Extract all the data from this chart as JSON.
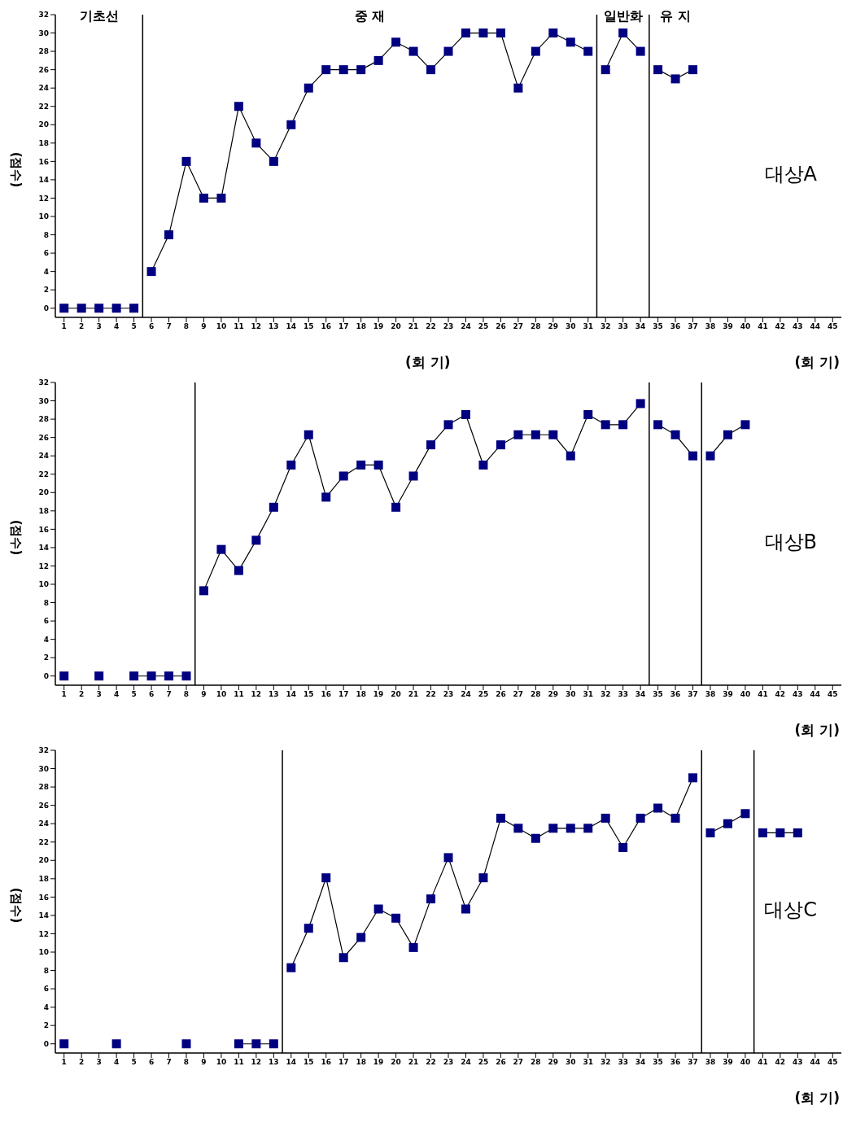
{
  "chart_data": [
    {
      "type": "line",
      "xlabel": "(회 기)",
      "ylabel": "(점수)",
      "xlim": [
        0.5,
        45.5
      ],
      "xticks": [
        1,
        2,
        3,
        4,
        5,
        6,
        7,
        8,
        9,
        10,
        11,
        12,
        13,
        14,
        15,
        16,
        17,
        18,
        19,
        20,
        21,
        22,
        23,
        24,
        25,
        26,
        27,
        28,
        29,
        30,
        31,
        32,
        33,
        34,
        35,
        36,
        37,
        38,
        39,
        40,
        41,
        42,
        43,
        44,
        45
      ],
      "ylim": [
        -1,
        32
      ],
      "yticks": [
        0,
        2,
        4,
        6,
        8,
        10,
        12,
        14,
        16,
        18,
        20,
        22,
        24,
        26,
        28,
        30,
        32
      ],
      "grid": false,
      "legend": false,
      "marker": "square",
      "line_style": "solid",
      "ref_lines": [
        {
          "axis": "x",
          "value": 5.5
        },
        {
          "axis": "x",
          "value": 31.5
        },
        {
          "axis": "x",
          "value": 34.5
        }
      ],
      "annotations": [
        "대상A",
        "(회 기)",
        "기초선",
        "중 재",
        "일반화",
        "유 지"
      ],
      "series": [
        {
          "color": "#000080",
          "x": [
            1,
            2,
            3,
            4,
            5
          ],
          "values": [
            0,
            0,
            0,
            0,
            0
          ]
        },
        {
          "color": "#000080",
          "x": [
            6,
            7,
            8,
            9,
            10,
            11,
            12,
            13,
            14,
            15,
            16,
            17,
            18,
            19,
            20,
            21,
            22,
            23,
            24,
            25,
            26,
            27,
            28,
            29,
            30,
            31
          ],
          "values": [
            4,
            8,
            16,
            12,
            12,
            22,
            18,
            16,
            20,
            24,
            26,
            26,
            26,
            27,
            29,
            28,
            26,
            28,
            30,
            30,
            30,
            24,
            28,
            30,
            29,
            28
          ]
        },
        {
          "color": "#000080",
          "x": [
            32,
            33,
            34
          ],
          "values": [
            26,
            30,
            28
          ]
        },
        {
          "color": "#000080",
          "x": [
            35,
            36,
            37
          ],
          "values": [
            26,
            25,
            26
          ]
        }
      ]
    },
    {
      "type": "line",
      "xlabel": "(회 기)",
      "ylabel": "(점수)",
      "xlim": [
        0.5,
        45.5
      ],
      "xticks": [
        1,
        2,
        3,
        4,
        5,
        6,
        7,
        8,
        9,
        10,
        11,
        12,
        13,
        14,
        15,
        16,
        17,
        18,
        19,
        20,
        21,
        22,
        23,
        24,
        25,
        26,
        27,
        28,
        29,
        30,
        31,
        32,
        33,
        34,
        35,
        36,
        37,
        38,
        39,
        40,
        41,
        42,
        43,
        44,
        45
      ],
      "ylim": [
        -1,
        32
      ],
      "yticks": [
        0,
        2,
        4,
        6,
        8,
        10,
        12,
        14,
        16,
        18,
        20,
        22,
        24,
        26,
        28,
        30,
        32
      ],
      "grid": false,
      "legend": false,
      "marker": "square",
      "line_style": "solid",
      "ref_lines": [
        {
          "axis": "x",
          "value": 8.5
        },
        {
          "axis": "x",
          "value": 34.5
        },
        {
          "axis": "x",
          "value": 37.5
        }
      ],
      "annotations": [
        "대상B"
      ],
      "series": [
        {
          "color": "#000080",
          "x": [
            1,
            2,
            3,
            4,
            5,
            6,
            7,
            8
          ],
          "values": [
            0,
            null,
            0,
            null,
            0,
            0,
            0,
            0
          ]
        },
        {
          "color": "#000080",
          "x": [
            9,
            10,
            11,
            12,
            13,
            14,
            15,
            16,
            17,
            18,
            19,
            20,
            21,
            22,
            23,
            24,
            25,
            26,
            27,
            28,
            29,
            30,
            31,
            32,
            33,
            34
          ],
          "values": [
            9.3,
            13.8,
            11.5,
            14.8,
            18.4,
            23,
            26.3,
            19.5,
            21.8,
            23,
            23,
            18.4,
            21.8,
            25.2,
            27.4,
            28.5,
            23,
            25.2,
            26.3,
            26.3,
            26.3,
            24,
            28.5,
            27.4,
            27.4,
            29.7
          ]
        },
        {
          "color": "#000080",
          "x": [
            35,
            36,
            37
          ],
          "values": [
            27.4,
            26.3,
            24
          ]
        },
        {
          "color": "#000080",
          "x": [
            38,
            39,
            40
          ],
          "values": [
            24,
            26.3,
            27.4
          ]
        }
      ]
    },
    {
      "type": "line",
      "xlabel": "(회 기)",
      "ylabel": "(점수)",
      "xlim": [
        0.5,
        45.5
      ],
      "xticks": [
        1,
        2,
        3,
        4,
        5,
        6,
        7,
        8,
        9,
        10,
        11,
        12,
        13,
        14,
        15,
        16,
        17,
        18,
        19,
        20,
        21,
        22,
        23,
        24,
        25,
        26,
        27,
        28,
        29,
        30,
        31,
        32,
        33,
        34,
        35,
        36,
        37,
        38,
        39,
        40,
        41,
        42,
        43,
        44,
        45
      ],
      "ylim": [
        -1,
        32
      ],
      "yticks": [
        0,
        2,
        4,
        6,
        8,
        10,
        12,
        14,
        16,
        18,
        20,
        22,
        24,
        26,
        28,
        30,
        32
      ],
      "grid": false,
      "legend": false,
      "marker": "square",
      "line_style": "solid",
      "ref_lines": [
        {
          "axis": "x",
          "value": 13.5
        },
        {
          "axis": "x",
          "value": 37.5
        },
        {
          "axis": "x",
          "value": 40.5
        }
      ],
      "annotations": [
        "대상C"
      ],
      "series": [
        {
          "color": "#000080",
          "x": [
            1,
            2,
            3,
            4,
            5,
            6,
            7,
            8,
            9,
            10,
            11,
            12,
            13
          ],
          "values": [
            0,
            null,
            null,
            0,
            null,
            null,
            null,
            0,
            null,
            null,
            0,
            0,
            0
          ]
        },
        {
          "color": "#000080",
          "x": [
            14,
            15,
            16,
            17,
            18,
            19,
            20,
            21,
            22,
            23,
            24,
            25,
            26,
            27,
            28,
            29,
            30,
            31,
            32,
            33,
            34,
            35,
            36,
            37
          ],
          "values": [
            8.3,
            12.6,
            18.1,
            9.4,
            11.6,
            14.7,
            13.7,
            10.5,
            15.8,
            20.3,
            14.7,
            18.1,
            24.6,
            23.5,
            22.4,
            23.5,
            23.5,
            23.5,
            24.6,
            21.4,
            24.6,
            25.7,
            24.6,
            29
          ]
        },
        {
          "color": "#000080",
          "x": [
            38,
            39,
            40
          ],
          "values": [
            23,
            24,
            25.1
          ]
        },
        {
          "color": "#000080",
          "x": [
            41,
            42,
            43
          ],
          "values": [
            23,
            23,
            23
          ]
        }
      ]
    }
  ]
}
